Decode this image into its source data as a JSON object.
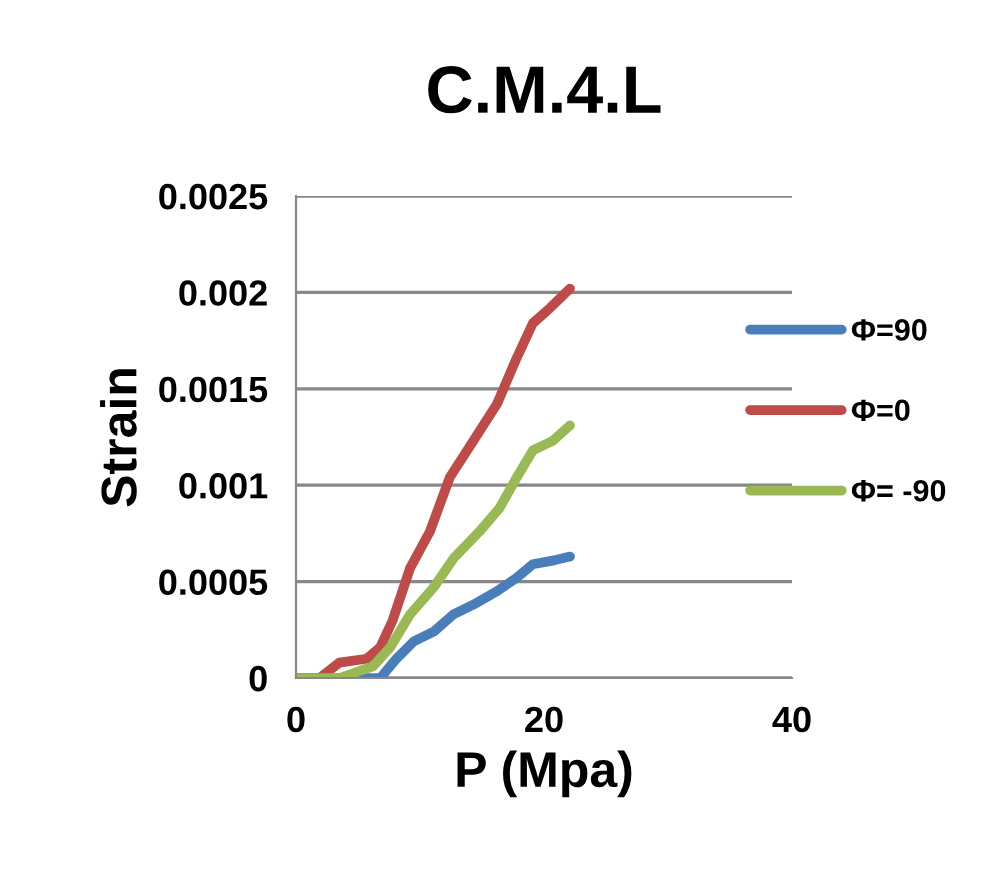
{
  "chart_data": {
    "type": "line",
    "title": "C.M.4.L",
    "xlabel": "P (Mpa)",
    "ylabel": "Strain",
    "xlim": [
      0,
      40
    ],
    "xticks": [
      0,
      20,
      40
    ],
    "ylim": [
      0,
      0.0025
    ],
    "yticks": [
      0,
      {
        "value": 0.0005,
        "label": "0.0005"
      },
      {
        "value": 0.001,
        "label": "0.001"
      },
      {
        "value": 0.0015,
        "label": "0.0015"
      },
      {
        "value": 0.002,
        "label": "0.002"
      },
      {
        "value": 0.0025,
        "label": "0.0025"
      }
    ],
    "grid": "y",
    "legend": "right",
    "marker": "none",
    "series": [
      {
        "name": "Φ=90",
        "color": "#4a7ebb",
        "x": [
          0,
          4.1,
          6.8,
          8.1,
          9.5,
          11.1,
          12.7,
          14.3,
          16.2,
          17.8,
          19.1,
          20.8,
          22.1
        ],
        "values": [
          0,
          0,
          0,
          0.0001,
          0.00019,
          0.00024,
          0.00033,
          0.00038,
          0.00045,
          0.00052,
          0.00059,
          0.00061,
          0.00063
        ]
      },
      {
        "name": "Φ=0",
        "color": "#be4b48",
        "x": [
          0,
          1.9,
          3.5,
          5.7,
          6.8,
          7.8,
          9.2,
          10.8,
          12.4,
          14.3,
          16.2,
          17.8,
          19.1,
          20.5,
          22.1
        ],
        "values": [
          0,
          0,
          8e-05,
          0.0001,
          0.00016,
          0.0003,
          0.00057,
          0.00076,
          0.00104,
          0.00123,
          0.00142,
          0.00166,
          0.00184,
          0.00192,
          0.00202
        ]
      },
      {
        "name": "Φ= -90",
        "color": "#98b954",
        "x": [
          0,
          3.5,
          6.2,
          7.6,
          9.2,
          11.1,
          12.7,
          14.8,
          16.4,
          17.8,
          19.1,
          20.7,
          22.1
        ],
        "values": [
          0,
          0,
          6e-05,
          0.00016,
          0.00033,
          0.00047,
          0.00062,
          0.00076,
          0.00088,
          0.00104,
          0.00118,
          0.00123,
          0.00131
        ]
      }
    ]
  }
}
